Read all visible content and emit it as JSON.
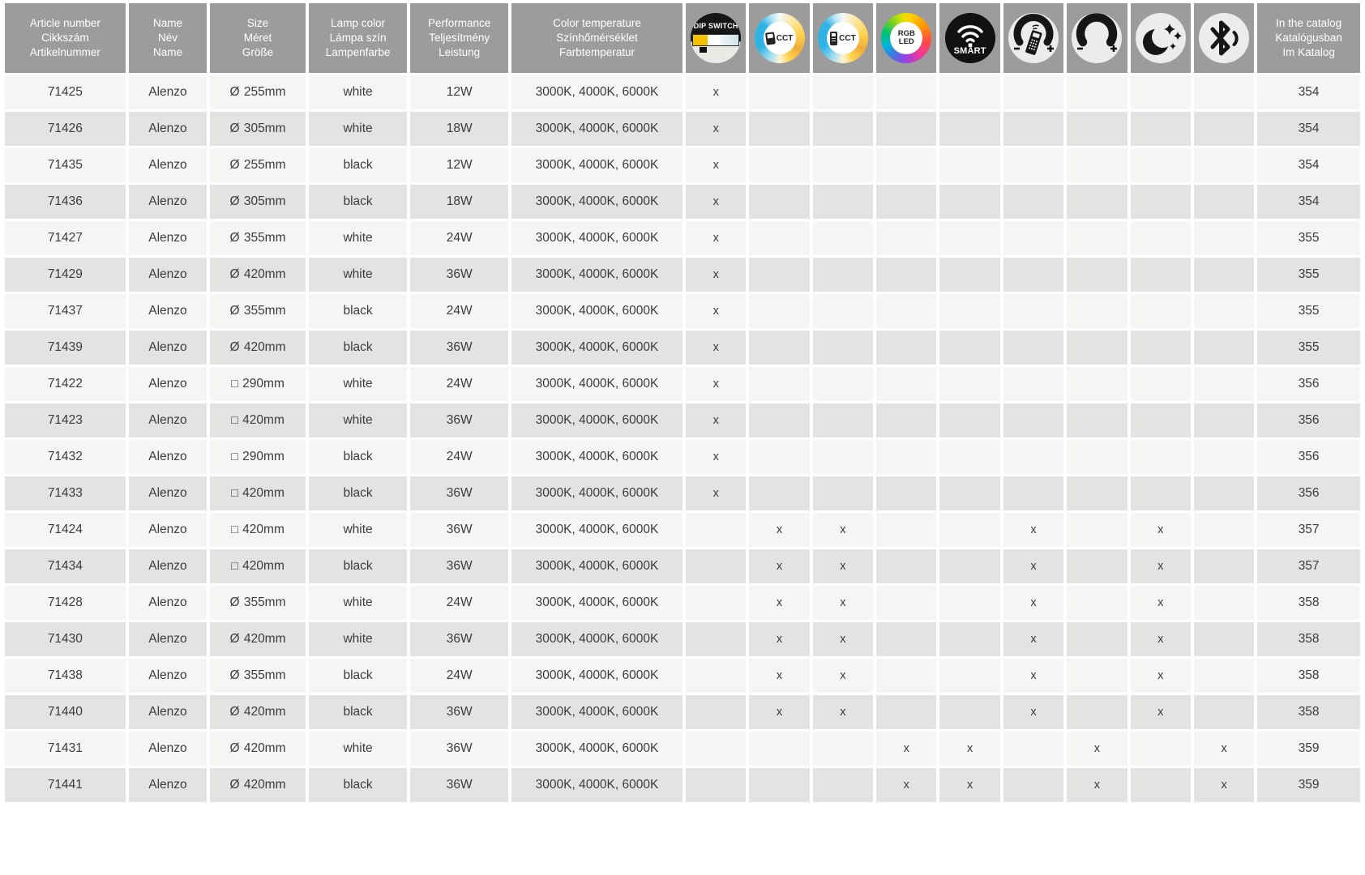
{
  "table": {
    "headers": {
      "article": [
        "Article number",
        "Cikkszám",
        "Artikelnummer"
      ],
      "name": [
        "Name",
        "Név",
        "Name"
      ],
      "size": [
        "Size",
        "Méret",
        "Größe"
      ],
      "lamp_color": [
        "Lamp color",
        "Lámpa szín",
        "Lampenfarbe"
      ],
      "performance": [
        "Performance",
        "Teljesítmény",
        "Leistung"
      ],
      "color_temperature": [
        "Color temperature",
        "Színhőmérséklet",
        "Farbtemperatur"
      ],
      "catalog": [
        "In the catalog",
        "Katalógusban",
        "Im Katalog"
      ]
    },
    "feature_columns": [
      {
        "icon": "dip-switch-icon",
        "label": "DIP SWITCH"
      },
      {
        "icon": "cct-wall-switch-icon",
        "label": "CCT"
      },
      {
        "icon": "cct-remote-icon",
        "label": "CCT"
      },
      {
        "icon": "rgb-led-icon",
        "label": [
          "RGB",
          "LED"
        ]
      },
      {
        "icon": "smart-wifi-icon",
        "label": "SMART"
      },
      {
        "icon": "remote-dimming-icon",
        "label": ""
      },
      {
        "icon": "dimmer-icon",
        "label": ""
      },
      {
        "icon": "night-mode-icon",
        "label": ""
      },
      {
        "icon": "bluetooth-icon",
        "label": ""
      }
    ],
    "shape_glyphs": {
      "round": "Ø",
      "square": "□"
    },
    "feature_mark": "x",
    "rows": [
      {
        "article": "71425",
        "name": "Alenzo",
        "shape": "round",
        "size": "255mm",
        "lamp_color": "white",
        "performance": "12W",
        "color_temperature": "3000K, 4000K, 6000K",
        "features": [
          1
        ],
        "catalog_page": "354"
      },
      {
        "article": "71426",
        "name": "Alenzo",
        "shape": "round",
        "size": "305mm",
        "lamp_color": "white",
        "performance": "18W",
        "color_temperature": "3000K, 4000K, 6000K",
        "features": [
          1
        ],
        "catalog_page": "354"
      },
      {
        "article": "71435",
        "name": "Alenzo",
        "shape": "round",
        "size": "255mm",
        "lamp_color": "black",
        "performance": "12W",
        "color_temperature": "3000K, 4000K, 6000K",
        "features": [
          1
        ],
        "catalog_page": "354"
      },
      {
        "article": "71436",
        "name": "Alenzo",
        "shape": "round",
        "size": "305mm",
        "lamp_color": "black",
        "performance": "18W",
        "color_temperature": "3000K, 4000K, 6000K",
        "features": [
          1
        ],
        "catalog_page": "354"
      },
      {
        "article": "71427",
        "name": "Alenzo",
        "shape": "round",
        "size": "355mm",
        "lamp_color": "white",
        "performance": "24W",
        "color_temperature": "3000K, 4000K, 6000K",
        "features": [
          1
        ],
        "catalog_page": "355"
      },
      {
        "article": "71429",
        "name": "Alenzo",
        "shape": "round",
        "size": "420mm",
        "lamp_color": "white",
        "performance": "36W",
        "color_temperature": "3000K, 4000K, 6000K",
        "features": [
          1
        ],
        "catalog_page": "355"
      },
      {
        "article": "71437",
        "name": "Alenzo",
        "shape": "round",
        "size": "355mm",
        "lamp_color": "black",
        "performance": "24W",
        "color_temperature": "3000K, 4000K, 6000K",
        "features": [
          1
        ],
        "catalog_page": "355"
      },
      {
        "article": "71439",
        "name": "Alenzo",
        "shape": "round",
        "size": "420mm",
        "lamp_color": "black",
        "performance": "36W",
        "color_temperature": "3000K, 4000K, 6000K",
        "features": [
          1
        ],
        "catalog_page": "355"
      },
      {
        "article": "71422",
        "name": "Alenzo",
        "shape": "square",
        "size": "290mm",
        "lamp_color": "white",
        "performance": "24W",
        "color_temperature": "3000K, 4000K, 6000K",
        "features": [
          1
        ],
        "catalog_page": "356"
      },
      {
        "article": "71423",
        "name": "Alenzo",
        "shape": "square",
        "size": "420mm",
        "lamp_color": "white",
        "performance": "36W",
        "color_temperature": "3000K, 4000K, 6000K",
        "features": [
          1
        ],
        "catalog_page": "356"
      },
      {
        "article": "71432",
        "name": "Alenzo",
        "shape": "square",
        "size": "290mm",
        "lamp_color": "black",
        "performance": "24W",
        "color_temperature": "3000K, 4000K, 6000K",
        "features": [
          1
        ],
        "catalog_page": "356"
      },
      {
        "article": "71433",
        "name": "Alenzo",
        "shape": "square",
        "size": "420mm",
        "lamp_color": "black",
        "performance": "36W",
        "color_temperature": "3000K, 4000K, 6000K",
        "features": [
          1
        ],
        "catalog_page": "356"
      },
      {
        "article": "71424",
        "name": "Alenzo",
        "shape": "square",
        "size": "420mm",
        "lamp_color": "white",
        "performance": "36W",
        "color_temperature": "3000K, 4000K, 6000K",
        "features": [
          2,
          3,
          6,
          8
        ],
        "catalog_page": "357"
      },
      {
        "article": "71434",
        "name": "Alenzo",
        "shape": "square",
        "size": "420mm",
        "lamp_color": "black",
        "performance": "36W",
        "color_temperature": "3000K, 4000K, 6000K",
        "features": [
          2,
          3,
          6,
          8
        ],
        "catalog_page": "357"
      },
      {
        "article": "71428",
        "name": "Alenzo",
        "shape": "round",
        "size": "355mm",
        "lamp_color": "white",
        "performance": "24W",
        "color_temperature": "3000K, 4000K, 6000K",
        "features": [
          2,
          3,
          6,
          8
        ],
        "catalog_page": "358"
      },
      {
        "article": "71430",
        "name": "Alenzo",
        "shape": "round",
        "size": "420mm",
        "lamp_color": "white",
        "performance": "36W",
        "color_temperature": "3000K, 4000K, 6000K",
        "features": [
          2,
          3,
          6,
          8
        ],
        "catalog_page": "358"
      },
      {
        "article": "71438",
        "name": "Alenzo",
        "shape": "round",
        "size": "355mm",
        "lamp_color": "black",
        "performance": "24W",
        "color_temperature": "3000K, 4000K, 6000K",
        "features": [
          2,
          3,
          6,
          8
        ],
        "catalog_page": "358"
      },
      {
        "article": "71440",
        "name": "Alenzo",
        "shape": "round",
        "size": "420mm",
        "lamp_color": "black",
        "performance": "36W",
        "color_temperature": "3000K, 4000K, 6000K",
        "features": [
          2,
          3,
          6,
          8
        ],
        "catalog_page": "358"
      },
      {
        "article": "71431",
        "name": "Alenzo",
        "shape": "round",
        "size": "420mm",
        "lamp_color": "white",
        "performance": "36W",
        "color_temperature": "3000K, 4000K, 6000K",
        "features": [
          4,
          5,
          7,
          9
        ],
        "catalog_page": "359"
      },
      {
        "article": "71441",
        "name": "Alenzo",
        "shape": "round",
        "size": "420mm",
        "lamp_color": "black",
        "performance": "36W",
        "color_temperature": "3000K, 4000K, 6000K",
        "features": [
          4,
          5,
          7,
          9
        ],
        "catalog_page": "359"
      }
    ]
  },
  "colors": {
    "header_bg": "#9c9c9c",
    "row_light": "#f5f5f3",
    "row_dark": "#e3e3e1",
    "text": "#3c3c3c",
    "dip_yellow": "#f2c200",
    "cct_blue": "#2fb2e4",
    "cct_yellow": "#ffd44e",
    "icon_dark": "#161616",
    "icon_light_bg": "#ececea"
  }
}
